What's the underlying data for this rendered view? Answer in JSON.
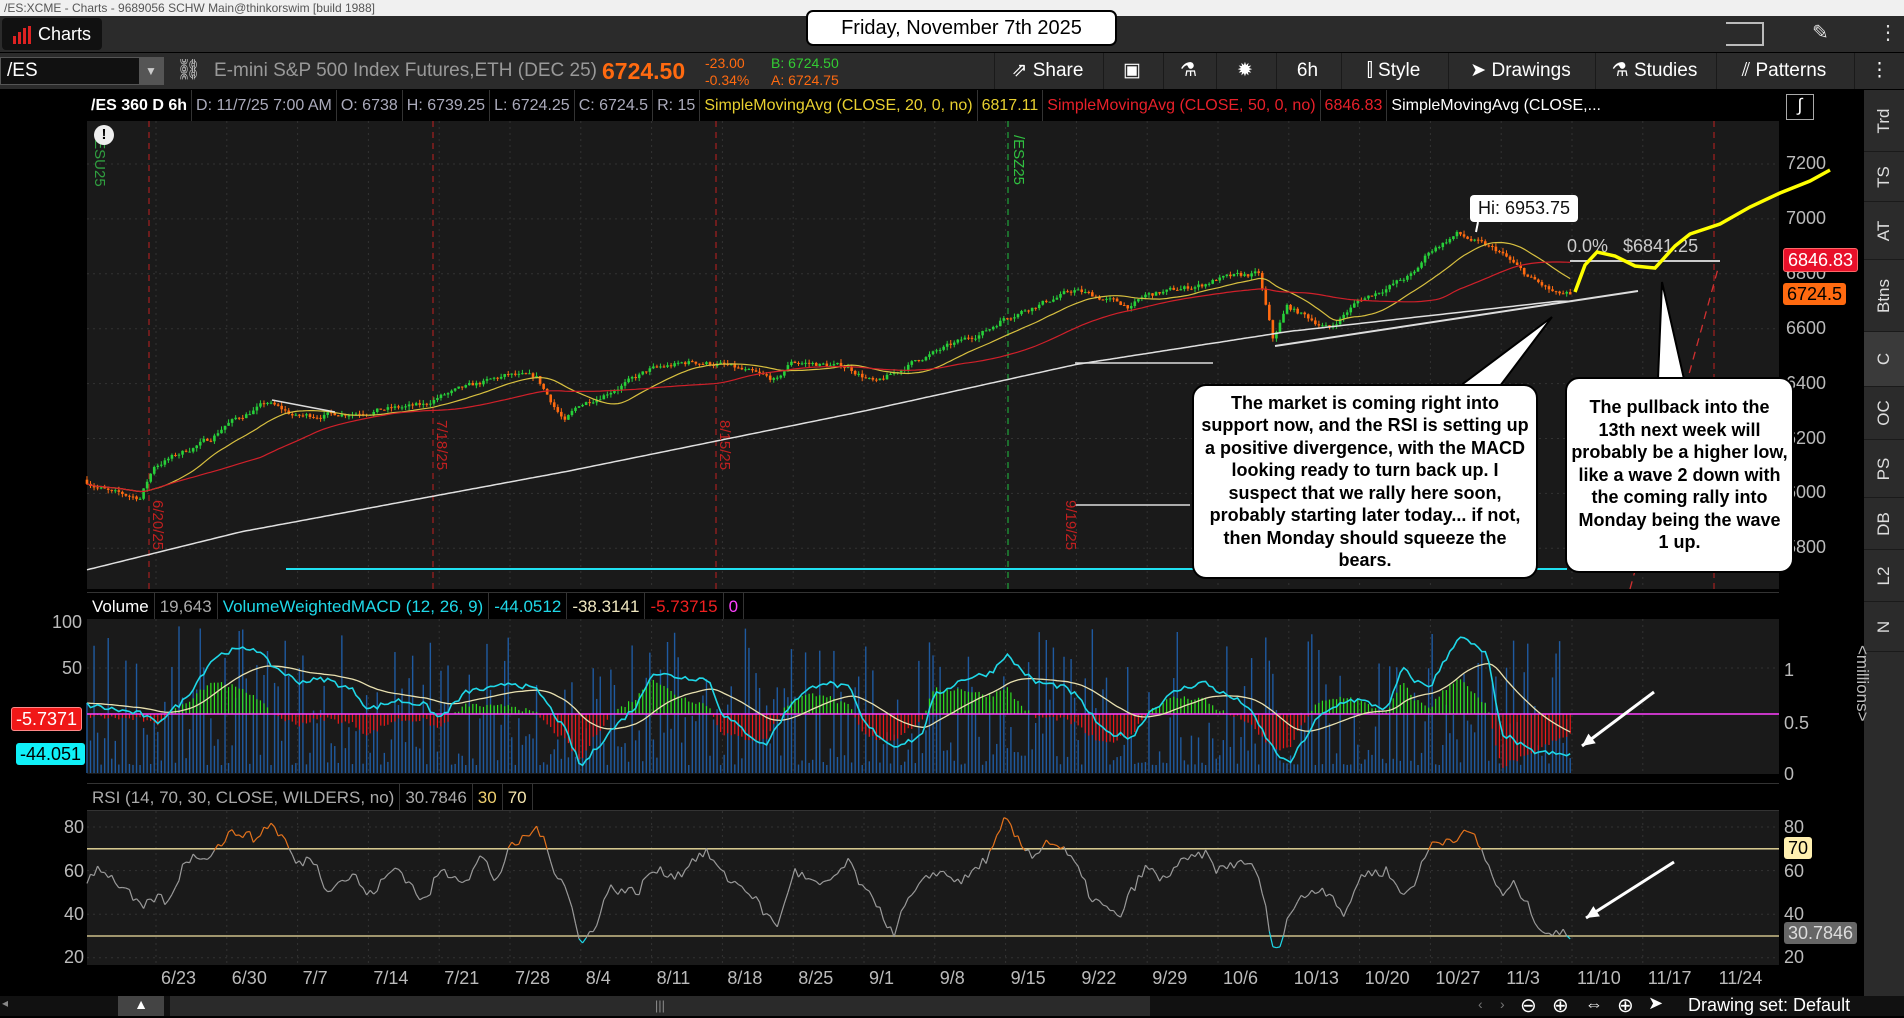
{
  "window": {
    "title": "/ES:XCME - Charts - 9689056 SCHW Main@thinkorswim [build 1988]",
    "date_banner": "Friday, November 7th 2025"
  },
  "topbar": {
    "charts_label": "Charts"
  },
  "toolbar": {
    "symbol": "/ES",
    "description": "E-mini S&P 500 Index Futures,ETH (DEC 25)",
    "last": "6724.50",
    "change": "-23.00",
    "change_pct": "-0.34%",
    "bid": "B: 6724.50",
    "ask": "A: 6724.75",
    "share": "Share",
    "timeframe": "6h",
    "style": "Style",
    "drawings": "Drawings",
    "studies": "Studies",
    "patterns": "Patterns"
  },
  "header": {
    "symbol": "/ES 360 D 6h",
    "date": "D: 11/7/25 7:00 AM",
    "open": "O: 6738",
    "high": "H: 6739.25",
    "low": "L: 6724.25",
    "close": "C: 6724.5",
    "range": "R: 15",
    "sma20_label": "SimpleMovingAvg (CLOSE, 20, 0, no)",
    "sma20_value": "6817.11",
    "sma50_label": "SimpleMovingAvg (CLOSE, 50, 0, no)",
    "sma50_value": "6846.83",
    "sma200_label": "SimpleMovingAvg (CLOSE,..."
  },
  "price_axis": {
    "labels": [
      "7200",
      "7000",
      "6800",
      "6600",
      "6400",
      "6200",
      "6000",
      "5800"
    ],
    "sma50_tag": "6846.83",
    "last_tag": "6724.5"
  },
  "annotations": {
    "hi": "Hi: 6953.75",
    "fib_pct": "0.0%",
    "fib_price": "$6841.25",
    "callout1": "The market is coming right into support now, and the RSI is setting up a positive divergence, with the MACD looking ready to turn back up.  I suspect that we rally here soon, probably starting later today... if not, then Monday should squeeze the bears.",
    "callout2": "The pullback into the 13th next week will probably be a higher low, like a wave 2 down with the coming rally into Monday being the wave 1 up.",
    "expiry_labels": [
      "/ESU25",
      "6/20/25",
      "7/18/25",
      "8/15/25",
      "/ESZ25",
      "9/19/25"
    ]
  },
  "macd_panel": {
    "volume_label": "Volume",
    "volume_value": "19,643",
    "macd_label": "VolumeWeightedMACD (12, 26, 9)",
    "macd_value": "-44.0512",
    "signal_value": "-38.3141",
    "diff_value": "-5.73715",
    "zero_value": "0",
    "left_labels": [
      "100",
      "50"
    ],
    "right_labels": [
      "1",
      "0.5",
      "0"
    ],
    "units": "<millions>",
    "diff_tag": "-5.7371",
    "macd_tag": "-44.051"
  },
  "rsi_panel": {
    "label": "RSI (14, 70, 30, CLOSE, WILDERS, no)",
    "value": "30.7846",
    "oversold": "30",
    "overbought": "70",
    "left_labels": [
      "80",
      "60",
      "40",
      "20"
    ],
    "right_labels": [
      "80",
      "60",
      "40",
      "20"
    ],
    "overbought_tag": "70",
    "value_tag": "30.7846"
  },
  "date_axis": [
    "6/23",
    "6/30",
    "7/7",
    "7/14",
    "7/21",
    "7/28",
    "8/4",
    "8/11",
    "8/18",
    "8/25",
    "9/1",
    "9/8",
    "9/15",
    "9/22",
    "9/29",
    "10/6",
    "10/13",
    "10/20",
    "10/27",
    "11/3",
    "11/10",
    "11/17",
    "11/24"
  ],
  "sidebar": [
    "Trd",
    "TS",
    "AT",
    "Btns",
    "C",
    "OC",
    "PS",
    "DB",
    "L2",
    "N"
  ],
  "bottombar": {
    "drawing_set": "Drawing set: Default"
  },
  "colors": {
    "up": "#27d03a",
    "down": "#ff6a10",
    "sma20": "#d8c040",
    "sma50": "#d0202a",
    "sma200": "#e0e0e0",
    "macd": "#1fd8e8",
    "signal": "#e8e0b0",
    "volume": "#1f5aa0",
    "rsi": "#9a9a9a",
    "rsi_hot": "#e5731c",
    "zero": "#ff40ff",
    "projection": "#ffff00"
  },
  "chart_data": {
    "type": "candlestick",
    "price_path": [
      [
        "6/16",
        6050
      ],
      [
        "6/18",
        6000
      ],
      [
        "6/20",
        5985
      ],
      [
        "6/23",
        6100
      ],
      [
        "6/27",
        6200
      ],
      [
        "6/30",
        6250
      ],
      [
        "7/3",
        6330
      ],
      [
        "7/7",
        6280
      ],
      [
        "7/10",
        6290
      ],
      [
        "7/14",
        6300
      ],
      [
        "7/18",
        6320
      ],
      [
        "7/21",
        6350
      ],
      [
        "7/24",
        6400
      ],
      [
        "7/28",
        6430
      ],
      [
        "7/30",
        6420
      ],
      [
        "8/1",
        6260
      ],
      [
        "8/4",
        6320
      ],
      [
        "8/8",
        6420
      ],
      [
        "8/11",
        6450
      ],
      [
        "8/14",
        6480
      ],
      [
        "8/18",
        6470
      ],
      [
        "8/22",
        6410
      ],
      [
        "8/25",
        6480
      ],
      [
        "8/29",
        6460
      ],
      [
        "9/2",
        6400
      ],
      [
        "9/5",
        6490
      ],
      [
        "9/8",
        6510
      ],
      [
        "9/12",
        6600
      ],
      [
        "9/15",
        6640
      ],
      [
        "9/19",
        6720
      ],
      [
        "9/22",
        6740
      ],
      [
        "9/26",
        6680
      ],
      [
        "9/29",
        6720
      ],
      [
        "10/3",
        6760
      ],
      [
        "10/6",
        6780
      ],
      [
        "10/9",
        6800
      ],
      [
        "10/10",
        6560
      ],
      [
        "10/13",
        6680
      ],
      [
        "10/16",
        6600
      ],
      [
        "10/20",
        6700
      ],
      [
        "10/24",
        6800
      ],
      [
        "10/27",
        6880
      ],
      [
        "10/29",
        6945
      ],
      [
        "10/31",
        6900
      ],
      [
        "11/3",
        6880
      ],
      [
        "11/5",
        6790
      ],
      [
        "11/7",
        6724.5
      ]
    ],
    "sma200_path": [
      [
        "6/16",
        5720
      ],
      [
        "7/1",
        5860
      ],
      [
        "8/1",
        6080
      ],
      [
        "9/1",
        6300
      ],
      [
        "9/22",
        6470
      ],
      [
        "10/13",
        6590
      ],
      [
        "11/7",
        6700
      ]
    ],
    "macd_path": [
      [
        "6/16",
        10
      ],
      [
        "6/20",
        0
      ],
      [
        "6/23",
        -10
      ],
      [
        "6/25",
        15
      ],
      [
        "6/27",
        60
      ],
      [
        "6/30",
        68
      ],
      [
        "7/2",
        72
      ],
      [
        "7/3",
        55
      ],
      [
        "7/7",
        35
      ],
      [
        "7/9",
        38
      ],
      [
        "7/11",
        25
      ],
      [
        "7/14",
        5
      ],
      [
        "7/16",
        15
      ],
      [
        "7/18",
        10
      ],
      [
        "7/21",
        -5
      ],
      [
        "7/23",
        25
      ],
      [
        "7/25",
        28
      ],
      [
        "7/28",
        35
      ],
      [
        "7/30",
        25
      ],
      [
        "8/1",
        -20
      ],
      [
        "8/4",
        -58
      ],
      [
        "8/6",
        -20
      ],
      [
        "8/8",
        10
      ],
      [
        "8/11",
        45
      ],
      [
        "8/13",
        40
      ],
      [
        "8/15",
        38
      ],
      [
        "8/18",
        0
      ],
      [
        "8/21",
        -35
      ],
      [
        "8/25",
        15
      ],
      [
        "8/27",
        35
      ],
      [
        "8/29",
        28
      ],
      [
        "9/1",
        -10
      ],
      [
        "9/3",
        -35
      ],
      [
        "9/5",
        -25
      ],
      [
        "9/8",
        20
      ],
      [
        "9/10",
        38
      ],
      [
        "9/12",
        45
      ],
      [
        "9/15",
        65
      ],
      [
        "9/17",
        35
      ],
      [
        "9/19",
        30
      ],
      [
        "9/22",
        20
      ],
      [
        "9/24",
        -20
      ],
      [
        "9/26",
        -25
      ],
      [
        "9/29",
        0
      ],
      [
        "10/1",
        25
      ],
      [
        "10/3",
        35
      ],
      [
        "10/6",
        25
      ],
      [
        "10/8",
        10
      ],
      [
        "10/10",
        -40
      ],
      [
        "10/13",
        -55
      ],
      [
        "10/15",
        -5
      ],
      [
        "10/17",
        15
      ],
      [
        "10/20",
        15
      ],
      [
        "10/22",
        5
      ],
      [
        "10/23",
        50
      ],
      [
        "10/25",
        35
      ],
      [
        "10/27",
        30
      ],
      [
        "10/29",
        85
      ],
      [
        "10/31",
        65
      ],
      [
        "11/3",
        -20
      ],
      [
        "11/5",
        -40
      ],
      [
        "11/7",
        -44.05
      ]
    ],
    "rsi_path": [
      [
        "6/16",
        55
      ],
      [
        "6/17",
        62
      ],
      [
        "6/19",
        50
      ],
      [
        "6/20",
        42
      ],
      [
        "6/23",
        48
      ],
      [
        "6/24",
        45
      ],
      [
        "6/25",
        65
      ],
      [
        "6/27",
        68
      ],
      [
        "6/30",
        76
      ],
      [
        "7/1",
        78
      ],
      [
        "7/2",
        74
      ],
      [
        "7/3",
        82
      ],
      [
        "7/4",
        75
      ],
      [
        "7/7",
        62
      ],
      [
        "7/8",
        67
      ],
      [
        "7/9",
        52
      ],
      [
        "7/11",
        58
      ],
      [
        "7/14",
        48
      ],
      [
        "7/16",
        62
      ],
      [
        "7/18",
        45
      ],
      [
        "7/21",
        60
      ],
      [
        "7/23",
        56
      ],
      [
        "7/24",
        67
      ],
      [
        "7/25",
        55
      ],
      [
        "7/28",
        70
      ],
      [
        "7/30",
        80
      ],
      [
        "7/31",
        62
      ],
      [
        "8/1",
        53
      ],
      [
        "8/4",
        25
      ],
      [
        "8/5",
        35
      ],
      [
        "8/6",
        52
      ],
      [
        "8/8",
        50
      ],
      [
        "8/11",
        60
      ],
      [
        "8/13",
        58
      ],
      [
        "8/14",
        66
      ],
      [
        "8/15",
        68
      ],
      [
        "8/18",
        58
      ],
      [
        "8/20",
        50
      ],
      [
        "8/21",
        40
      ],
      [
        "8/22",
        35
      ],
      [
        "8/25",
        60
      ],
      [
        "8/27",
        52
      ],
      [
        "8/29",
        64
      ],
      [
        "9/1",
        50
      ],
      [
        "9/2",
        45
      ],
      [
        "9/3",
        30
      ],
      [
        "9/4",
        45
      ],
      [
        "9/5",
        53
      ],
      [
        "9/8",
        60
      ],
      [
        "9/10",
        55
      ],
      [
        "9/12",
        68
      ],
      [
        "9/15",
        84
      ],
      [
        "9/16",
        72
      ],
      [
        "9/17",
        67
      ],
      [
        "9/18",
        74
      ],
      [
        "9/19",
        70
      ],
      [
        "9/22",
        62
      ],
      [
        "9/23",
        48
      ],
      [
        "9/25",
        38
      ],
      [
        "9/26",
        52
      ],
      [
        "9/29",
        62
      ],
      [
        "9/30",
        55
      ],
      [
        "10/1",
        62
      ],
      [
        "10/3",
        68
      ],
      [
        "10/6",
        60
      ],
      [
        "10/8",
        65
      ],
      [
        "10/9",
        55
      ],
      [
        "10/10",
        20
      ],
      [
        "10/13",
        40
      ],
      [
        "10/14",
        48
      ],
      [
        "10/15",
        52
      ],
      [
        "10/16",
        50
      ],
      [
        "10/17",
        38
      ],
      [
        "10/20",
        58
      ],
      [
        "10/22",
        60
      ],
      [
        "10/23",
        48
      ],
      [
        "10/24",
        56
      ],
      [
        "10/27",
        72
      ],
      [
        "10/29",
        76
      ],
      [
        "10/30",
        77
      ],
      [
        "10/31",
        64
      ],
      [
        "11/3",
        48
      ],
      [
        "11/4",
        54
      ],
      [
        "11/5",
        42
      ],
      [
        "11/6",
        32
      ],
      [
        "11/7",
        30.78
      ]
    ],
    "price_range": [
      5700,
      7300
    ],
    "rsi_levels": [
      30,
      70
    ]
  }
}
